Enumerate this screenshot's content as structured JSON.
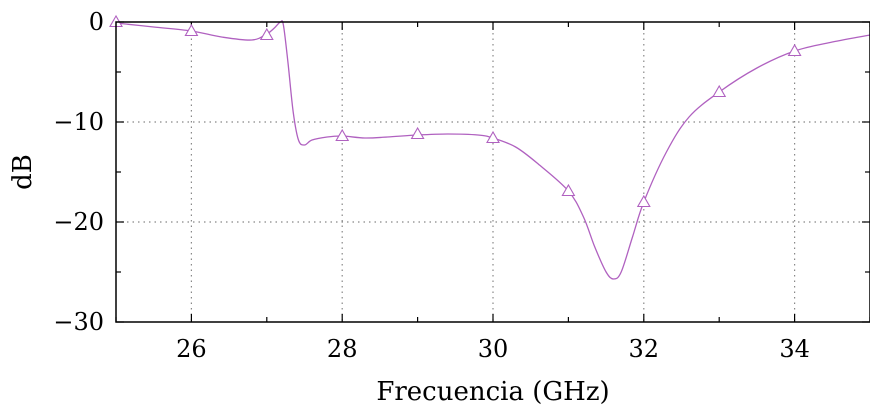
{
  "chart_data": {
    "type": "line",
    "xlabel": "Frecuencia (GHz)",
    "ylabel": "dB",
    "xlim": [
      25,
      35
    ],
    "ylim": [
      -30,
      0
    ],
    "x_ticks": [
      26,
      28,
      30,
      32,
      34
    ],
    "x_tick_labels": [
      "26",
      "28",
      "30",
      "32",
      "34"
    ],
    "y_ticks": [
      0,
      -10,
      -20,
      -30
    ],
    "y_tick_labels": [
      "0",
      "−10",
      "−20",
      "−30"
    ],
    "x_minor_ticks": [
      25,
      26,
      27,
      28,
      29,
      30,
      31,
      32,
      33,
      34,
      35
    ],
    "y_minor_ticks": [
      0,
      -5,
      -10,
      -15,
      -20,
      -25,
      -30
    ],
    "grid": true,
    "series": [
      {
        "color": "#b061c0",
        "marker": "triangle",
        "x": [
          25.0,
          25.5,
          26.0,
          26.4,
          26.8,
          27.0,
          27.1,
          27.18,
          27.22,
          27.28,
          27.35,
          27.42,
          27.5,
          27.6,
          27.8,
          28.0,
          28.3,
          28.6,
          29.0,
          29.4,
          29.8,
          30.0,
          30.3,
          30.6,
          31.0,
          31.2,
          31.35,
          31.5,
          31.6,
          31.7,
          31.85,
          32.0,
          32.3,
          32.6,
          33.0,
          33.5,
          34.0,
          34.5,
          35.0
        ],
        "y": [
          -0.1,
          -0.5,
          -0.9,
          -1.5,
          -1.8,
          -1.2,
          -0.6,
          0.0,
          -0.3,
          -4.0,
          -9.0,
          -11.8,
          -12.3,
          -11.8,
          -11.5,
          -11.4,
          -11.6,
          -11.5,
          -11.3,
          -11.2,
          -11.3,
          -11.6,
          -12.5,
          -14.2,
          -16.9,
          -19.5,
          -22.5,
          -25.0,
          -25.7,
          -25.0,
          -21.5,
          -18.0,
          -13.0,
          -9.5,
          -7.0,
          -4.6,
          -2.9,
          -2.0,
          -1.3
        ],
        "marker_x": [
          25,
          26,
          27,
          28,
          29,
          30,
          31,
          32,
          33,
          34
        ],
        "marker_y": [
          0.0,
          -0.9,
          -1.3,
          -11.4,
          -11.2,
          -11.6,
          -16.9,
          -18.0,
          -7.0,
          -2.9
        ]
      }
    ]
  }
}
